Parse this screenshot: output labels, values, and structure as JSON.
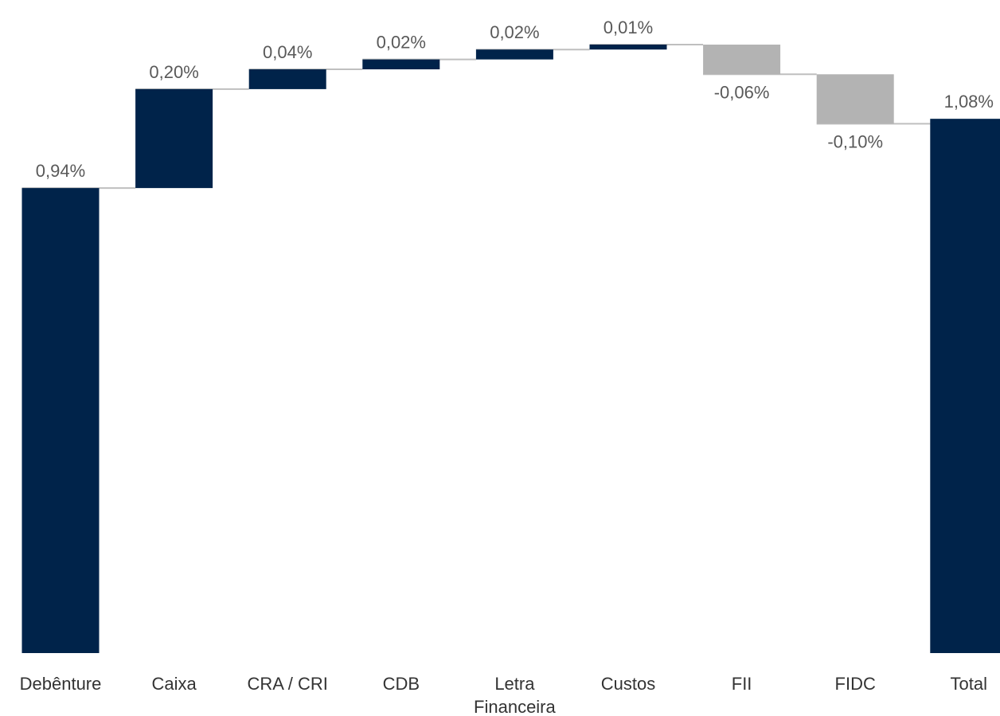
{
  "chart_data": {
    "type": "waterfall",
    "categories": [
      "Debênture",
      "Caixa",
      "CRA / CRI",
      "CDB",
      "Letra Financeira",
      "Custos",
      "FII",
      "FIDC",
      "Total"
    ],
    "values": [
      0.94,
      0.2,
      0.04,
      0.02,
      0.02,
      0.01,
      -0.06,
      -0.1,
      1.08
    ],
    "value_labels": [
      "0,94%",
      "0,20%",
      "0,04%",
      "0,02%",
      "0,02%",
      "0,01%",
      "-0,06%",
      "-0,10%",
      "1,08%"
    ],
    "is_total": [
      false,
      false,
      false,
      false,
      false,
      false,
      false,
      false,
      true
    ],
    "colors": {
      "increase": "#00234a",
      "decrease": "#b3b3b3",
      "total": "#00234a"
    },
    "connector_color": "#bfbfbf"
  }
}
